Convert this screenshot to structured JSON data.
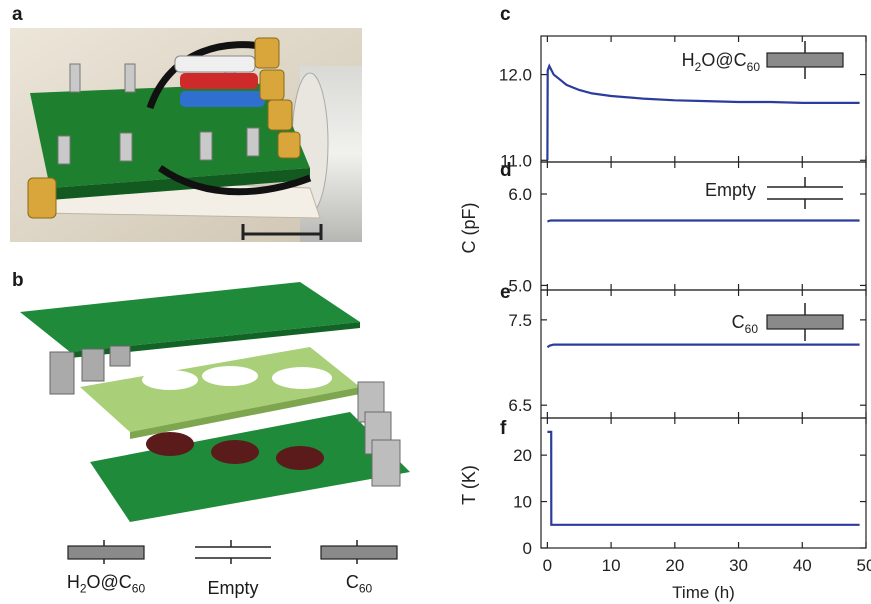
{
  "panels": {
    "a": "a",
    "b": "b",
    "c": "c",
    "d": "d",
    "e": "e",
    "f": "f"
  },
  "schematic_labels": {
    "h2o_pre": "H",
    "h2o_sub": "2",
    "h2o_post": "O@C",
    "h2o_sub2": "60",
    "empty": "Empty",
    "c60_pre": "C",
    "c60_sub": "60"
  },
  "colors": {
    "trace": "#2b3d9c",
    "board_green": "#1f8a3a",
    "layer_pale": "#a9cf79",
    "capacitor_gray": "#8a8a8a"
  },
  "chart_data": [
    {
      "type": "line",
      "panel": "c",
      "legend": "H2O@C60",
      "x_unit_label": "Time (h)",
      "ylabel": "",
      "yticks": [
        11.0,
        12.0
      ],
      "ylim": [
        10.98,
        12.45
      ],
      "xlim": [
        -1,
        50
      ],
      "series": [
        {
          "x": [
            0,
            0.05,
            0.3,
            1,
            2,
            3,
            5,
            7,
            10,
            15,
            20,
            25,
            30,
            35,
            40,
            45,
            49
          ],
          "values": [
            11.0,
            12.05,
            12.1,
            12.0,
            11.94,
            11.88,
            11.82,
            11.78,
            11.75,
            11.72,
            11.7,
            11.69,
            11.68,
            11.68,
            11.67,
            11.67,
            11.67
          ]
        }
      ]
    },
    {
      "type": "line",
      "panel": "d",
      "legend": "Empty",
      "ylabel": "C (pF)",
      "yticks": [
        5.0,
        6.0
      ],
      "ylim": [
        4.95,
        6.35
      ],
      "xlim": [
        -1,
        50
      ],
      "series": [
        {
          "x": [
            0,
            0.5,
            2,
            10,
            20,
            30,
            40,
            49
          ],
          "values": [
            5.7,
            5.71,
            5.71,
            5.71,
            5.71,
            5.71,
            5.71,
            5.71
          ]
        }
      ]
    },
    {
      "type": "line",
      "panel": "e",
      "legend": "C60",
      "ylabel": "",
      "yticks": [
        6.5,
        7.5
      ],
      "ylim": [
        6.35,
        7.85
      ],
      "xlim": [
        -1,
        50
      ],
      "series": [
        {
          "x": [
            0,
            0.4,
            1,
            10,
            20,
            30,
            40,
            49
          ],
          "values": [
            7.18,
            7.2,
            7.21,
            7.21,
            7.21,
            7.21,
            7.21,
            7.21
          ]
        }
      ]
    },
    {
      "type": "line",
      "panel": "f",
      "ylabel": "T (K)",
      "xlabel": "Time (h)",
      "yticks": [
        0,
        10,
        20
      ],
      "xticks": [
        0,
        10,
        20,
        30,
        40,
        50
      ],
      "ylim": [
        0,
        28
      ],
      "xlim": [
        -1,
        50
      ],
      "series": [
        {
          "x": [
            0,
            0.6,
            0.62,
            0.7,
            49
          ],
          "values": [
            25,
            25,
            5,
            5,
            5
          ]
        }
      ]
    }
  ]
}
